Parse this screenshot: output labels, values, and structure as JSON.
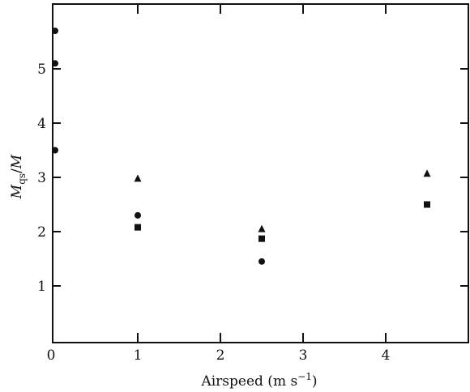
{
  "chart_data": {
    "type": "scatter",
    "title": "",
    "xlabel": "Airspeed (m s⁻¹)",
    "ylabel": "Mqs/M",
    "xlim": [
      0,
      5
    ],
    "ylim": [
      0,
      6
    ],
    "x_ticks": [
      0,
      1,
      2,
      3,
      4
    ],
    "x_tick_labels": [
      "0",
      "1",
      "2",
      "3",
      "4"
    ],
    "y_ticks": [
      1,
      2,
      3,
      4,
      5
    ],
    "y_tick_labels": [
      "1",
      "2",
      "3",
      "4",
      "5"
    ],
    "grid": false,
    "legend": "none",
    "series": [
      {
        "marker": "circle",
        "x": [
          0,
          0,
          0,
          1,
          2.5
        ],
        "y": [
          5.7,
          5.1,
          3.5,
          2.3,
          1.45
        ]
      },
      {
        "marker": "square",
        "x": [
          1,
          2.5,
          4.5
        ],
        "y": [
          2.08,
          1.87,
          2.5
        ]
      },
      {
        "marker": "triangle",
        "x": [
          1,
          2.5,
          4.5
        ],
        "y": [
          2.98,
          2.05,
          3.07
        ]
      }
    ],
    "colors": {
      "marks": "#111111",
      "axes": "#111111"
    }
  }
}
